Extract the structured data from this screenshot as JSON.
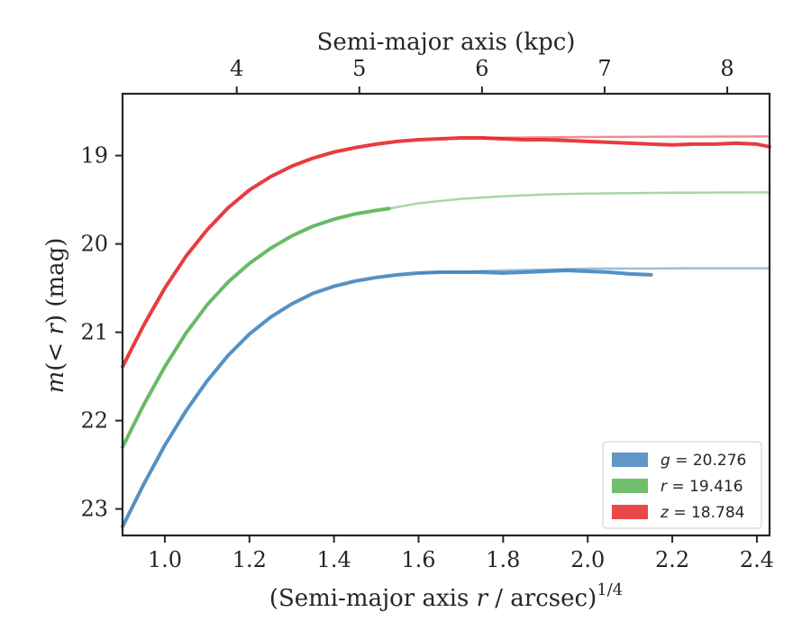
{
  "chart_data": {
    "type": "line",
    "xlabel_main": "(Semi-major axis ",
    "xlabel_var": "r",
    "xlabel_rest": " / arcsec)",
    "xlabel_exp": "1/4",
    "ylabel_main": "m",
    "ylabel_rest": "(< ",
    "ylabel_var": "r",
    "ylabel_unit": ") (mag)",
    "top_xlabel": "Semi-major axis (kpc)",
    "xlim": [
      0.9,
      2.43
    ],
    "ylim": [
      23.3,
      18.3
    ],
    "y_inverted": true,
    "x_ticks": [
      1.0,
      1.2,
      1.4,
      1.6,
      1.8,
      2.0,
      2.2,
      2.4
    ],
    "x_tick_labels": [
      "1.0",
      "1.2",
      "1.4",
      "1.6",
      "1.8",
      "2.0",
      "2.2",
      "2.4"
    ],
    "y_ticks": [
      19,
      20,
      21,
      22,
      23
    ],
    "y_tick_labels": [
      "19",
      "20",
      "21",
      "22",
      "23"
    ],
    "top_ticks_kpc": [
      4,
      5,
      6,
      7,
      8
    ],
    "top_tick_labels": [
      "4",
      "5",
      "6",
      "7",
      "8"
    ],
    "top_tick_positions_x": [
      1.17,
      1.46,
      1.75,
      2.04,
      2.33
    ],
    "legend_position": "lower-right",
    "series": [
      {
        "name": "g = 20.276",
        "legend_var": "g",
        "legend_val": " = 20.276",
        "color": "#377eb8",
        "asymptote": 20.276,
        "observed": {
          "x": [
            0.9,
            0.95,
            1.0,
            1.05,
            1.1,
            1.15,
            1.2,
            1.25,
            1.3,
            1.35,
            1.4,
            1.45,
            1.5,
            1.55,
            1.6,
            1.65,
            1.7,
            1.75,
            1.8,
            1.85,
            1.9,
            1.95,
            2.0,
            2.05,
            2.1,
            2.15
          ],
          "y": [
            23.2,
            22.72,
            22.28,
            21.89,
            21.55,
            21.26,
            21.02,
            20.83,
            20.68,
            20.56,
            20.48,
            20.42,
            20.38,
            20.35,
            20.33,
            20.32,
            20.32,
            20.32,
            20.33,
            20.32,
            20.31,
            20.3,
            20.31,
            20.32,
            20.34,
            20.35
          ]
        },
        "model": {
          "x": [
            1.6,
            1.8,
            2.0,
            2.2,
            2.43
          ],
          "y": [
            20.33,
            20.3,
            20.28,
            20.277,
            20.276
          ]
        }
      },
      {
        "name": "r = 19.416",
        "legend_var": "r",
        "legend_val": " = 19.416",
        "color": "#4daf4a",
        "asymptote": 19.416,
        "observed": {
          "x": [
            0.9,
            0.95,
            1.0,
            1.05,
            1.1,
            1.15,
            1.2,
            1.25,
            1.3,
            1.35,
            1.4,
            1.45,
            1.5,
            1.53
          ],
          "y": [
            22.3,
            21.82,
            21.39,
            21.01,
            20.69,
            20.43,
            20.22,
            20.05,
            19.91,
            19.8,
            19.72,
            19.66,
            19.62,
            19.6
          ]
        },
        "model": {
          "x": [
            1.53,
            1.6,
            1.7,
            1.8,
            1.9,
            2.0,
            2.2,
            2.43
          ],
          "y": [
            19.6,
            19.54,
            19.49,
            19.46,
            19.44,
            19.43,
            19.42,
            19.416
          ]
        }
      },
      {
        "name": "z = 18.784",
        "legend_var": "z",
        "legend_val": " = 18.784",
        "color": "#e41a1c",
        "asymptote": 18.784,
        "observed": {
          "x": [
            0.9,
            0.95,
            1.0,
            1.05,
            1.1,
            1.15,
            1.2,
            1.25,
            1.3,
            1.35,
            1.4,
            1.45,
            1.5,
            1.55,
            1.6,
            1.65,
            1.7,
            1.75,
            1.8,
            1.85,
            1.9,
            1.95,
            2.0,
            2.05,
            2.1,
            2.15,
            2.2,
            2.25,
            2.3,
            2.35,
            2.4,
            2.43
          ],
          "y": [
            21.39,
            20.92,
            20.5,
            20.14,
            19.84,
            19.59,
            19.39,
            19.24,
            19.12,
            19.03,
            18.96,
            18.91,
            18.87,
            18.84,
            18.82,
            18.81,
            18.8,
            18.8,
            18.81,
            18.82,
            18.82,
            18.83,
            18.84,
            18.85,
            18.86,
            18.87,
            18.88,
            18.87,
            18.87,
            18.86,
            18.87,
            18.9
          ]
        },
        "model": {
          "x": [
            1.75,
            2.0,
            2.2,
            2.43
          ],
          "y": [
            18.8,
            18.79,
            18.786,
            18.784
          ]
        }
      }
    ]
  }
}
